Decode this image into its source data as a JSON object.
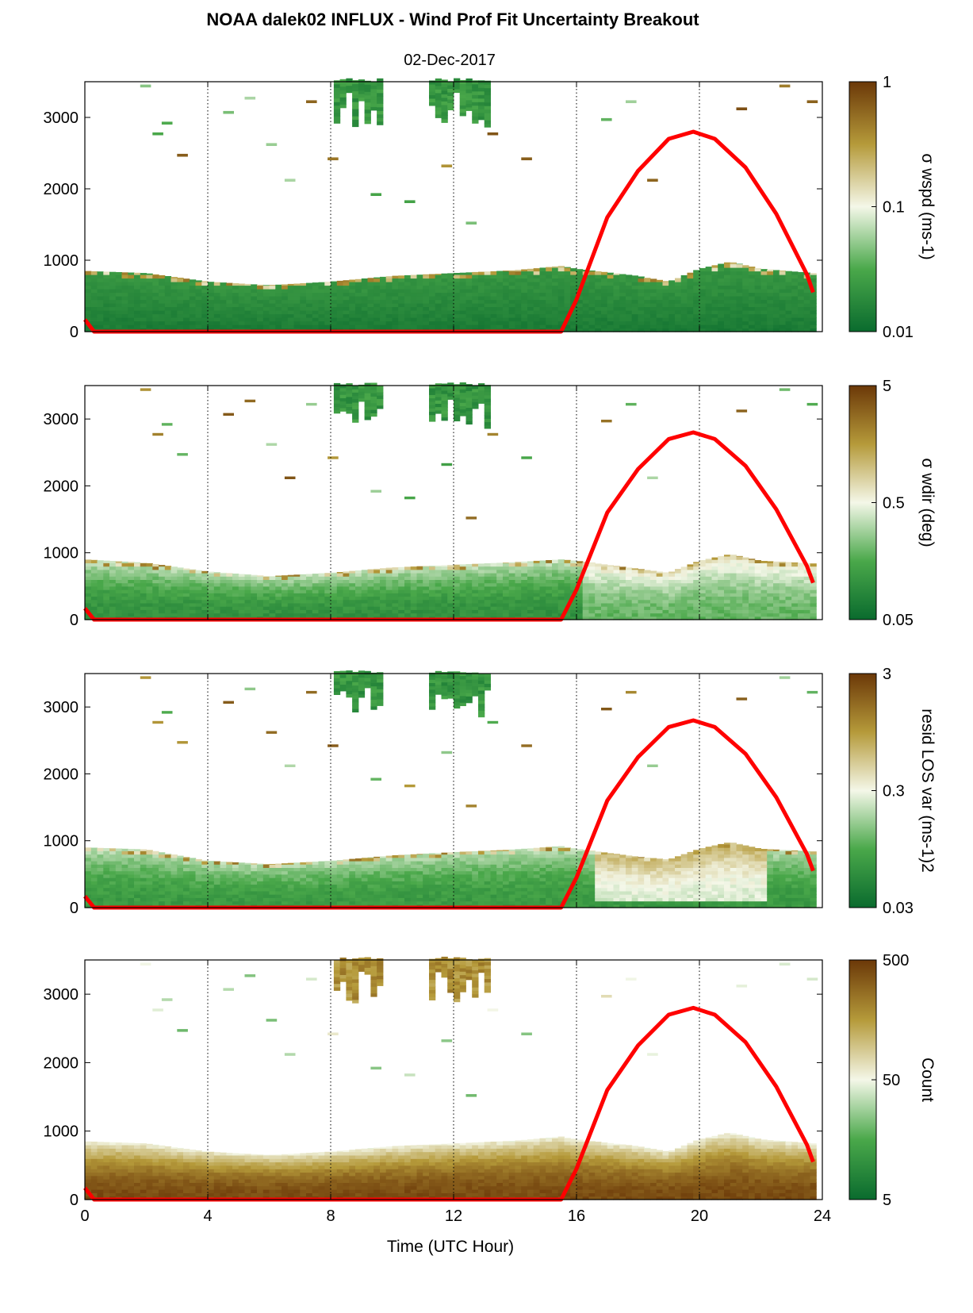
{
  "title": "NOAA dalek02 INFLUX - Wind Prof Fit Uncertainty Breakout",
  "subtitle": "02-Dec-2017",
  "xlabel": "Time (UTC Hour)",
  "colors": {
    "min_color": "#0a6b2e",
    "mid_color": "#f4f7e8",
    "max_color": "#6b3808",
    "overlay": "#ff0000",
    "ymax_all": 3500
  },
  "chart_data": [
    {
      "type": "heatmap",
      "xlim": [
        0,
        24
      ],
      "ylim": [
        0,
        3500
      ],
      "x_ticks": [
        0,
        4,
        8,
        12,
        16,
        20,
        24
      ],
      "y_ticks": [
        0,
        1000,
        2000,
        3000
      ],
      "vertical_gridlines": [
        4,
        8,
        12,
        16,
        20
      ],
      "colorbar_label": "σ wspd (ms-1)",
      "colorbar_ticks": [
        "1",
        "0.1",
        "0.01"
      ],
      "colorbar_scale": "log",
      "boundary_layer_top_m": [
        [
          0,
          850
        ],
        [
          2,
          820
        ],
        [
          4,
          700
        ],
        [
          6,
          650
        ],
        [
          8,
          700
        ],
        [
          10,
          780
        ],
        [
          12,
          820
        ],
        [
          14,
          860
        ],
        [
          15.5,
          920
        ],
        [
          16,
          880
        ],
        [
          18,
          780
        ],
        [
          19,
          700
        ],
        [
          20,
          880
        ],
        [
          21,
          980
        ],
        [
          22,
          880
        ],
        [
          23.7,
          820
        ]
      ],
      "overlay_line": {
        "color": "red",
        "x": [
          0,
          0.3,
          15.5,
          16,
          17,
          18,
          19,
          19.8,
          20.5,
          21.5,
          22.5,
          23.5,
          23.7
        ],
        "y": [
          170,
          0,
          0,
          450,
          1600,
          2250,
          2700,
          2800,
          2700,
          2300,
          1650,
          800,
          550
        ]
      }
    },
    {
      "type": "heatmap",
      "xlim": [
        0,
        24
      ],
      "ylim": [
        0,
        3500
      ],
      "x_ticks": [
        0,
        4,
        8,
        12,
        16,
        20,
        24
      ],
      "y_ticks": [
        0,
        1000,
        2000,
        3000
      ],
      "vertical_gridlines": [
        4,
        8,
        12,
        16,
        20
      ],
      "colorbar_label": "σ wdir (deg)",
      "colorbar_ticks": [
        "5",
        "0.5",
        "0.05"
      ],
      "colorbar_scale": "log",
      "boundary_layer_top_m": [
        [
          0,
          900
        ],
        [
          2,
          850
        ],
        [
          4,
          720
        ],
        [
          6,
          650
        ],
        [
          8,
          700
        ],
        [
          10,
          780
        ],
        [
          12,
          820
        ],
        [
          14,
          860
        ],
        [
          15.5,
          900
        ],
        [
          16,
          880
        ],
        [
          18,
          760
        ],
        [
          19,
          700
        ],
        [
          20,
          880
        ],
        [
          21,
          980
        ],
        [
          22,
          880
        ],
        [
          23.7,
          840
        ]
      ],
      "overlay_line": {
        "color": "red",
        "x": [
          0,
          0.3,
          15.5,
          16,
          17,
          18,
          19,
          19.8,
          20.5,
          21.5,
          22.5,
          23.5,
          23.7
        ],
        "y": [
          170,
          0,
          0,
          450,
          1600,
          2250,
          2700,
          2800,
          2700,
          2300,
          1650,
          800,
          550
        ]
      }
    },
    {
      "type": "heatmap",
      "xlim": [
        0,
        24
      ],
      "ylim": [
        0,
        3500
      ],
      "x_ticks": [
        0,
        4,
        8,
        12,
        16,
        20,
        24
      ],
      "y_ticks": [
        0,
        1000,
        2000,
        3000
      ],
      "vertical_gridlines": [
        4,
        8,
        12,
        16,
        20
      ],
      "colorbar_label": "resid LOS var (ms-1)2",
      "colorbar_ticks": [
        "3",
        "0.3",
        "0.03"
      ],
      "colorbar_scale": "log",
      "boundary_layer_top_m": [
        [
          0,
          900
        ],
        [
          2,
          870
        ],
        [
          4,
          700
        ],
        [
          6,
          650
        ],
        [
          8,
          700
        ],
        [
          10,
          780
        ],
        [
          12,
          830
        ],
        [
          14,
          870
        ],
        [
          15.5,
          920
        ],
        [
          16,
          880
        ],
        [
          18,
          760
        ],
        [
          19,
          720
        ],
        [
          20,
          880
        ],
        [
          21,
          980
        ],
        [
          22,
          880
        ],
        [
          23.7,
          840
        ]
      ],
      "overlay_line": {
        "color": "red",
        "x": [
          0,
          0.3,
          15.5,
          16,
          17,
          18,
          19,
          19.8,
          20.5,
          21.5,
          22.5,
          23.5,
          23.7
        ],
        "y": [
          170,
          0,
          0,
          450,
          1600,
          2250,
          2700,
          2800,
          2700,
          2300,
          1650,
          800,
          550
        ]
      }
    },
    {
      "type": "heatmap",
      "xlim": [
        0,
        24
      ],
      "ylim": [
        0,
        3500
      ],
      "x_ticks": [
        0,
        4,
        8,
        12,
        16,
        20,
        24
      ],
      "y_ticks": [
        0,
        1000,
        2000,
        3000
      ],
      "vertical_gridlines": [
        4,
        8,
        12,
        16,
        20
      ],
      "colorbar_label": "Count",
      "colorbar_ticks": [
        "500",
        "50",
        "5"
      ],
      "colorbar_scale": "log",
      "boundary_layer_top_m": [
        [
          0,
          850
        ],
        [
          2,
          820
        ],
        [
          4,
          700
        ],
        [
          6,
          650
        ],
        [
          8,
          700
        ],
        [
          10,
          780
        ],
        [
          12,
          820
        ],
        [
          14,
          860
        ],
        [
          15.5,
          920
        ],
        [
          16,
          880
        ],
        [
          18,
          780
        ],
        [
          19,
          700
        ],
        [
          20,
          880
        ],
        [
          21,
          980
        ],
        [
          22,
          880
        ],
        [
          23.7,
          820
        ]
      ],
      "overlay_line": {
        "color": "red",
        "x": [
          0,
          0.3,
          15.5,
          16,
          17,
          18,
          19,
          19.8,
          20.5,
          21.5,
          22.5,
          23.5,
          23.7
        ],
        "y": [
          170,
          0,
          0,
          450,
          1600,
          2250,
          2700,
          2800,
          2700,
          2300,
          1650,
          800,
          550
        ]
      }
    }
  ]
}
